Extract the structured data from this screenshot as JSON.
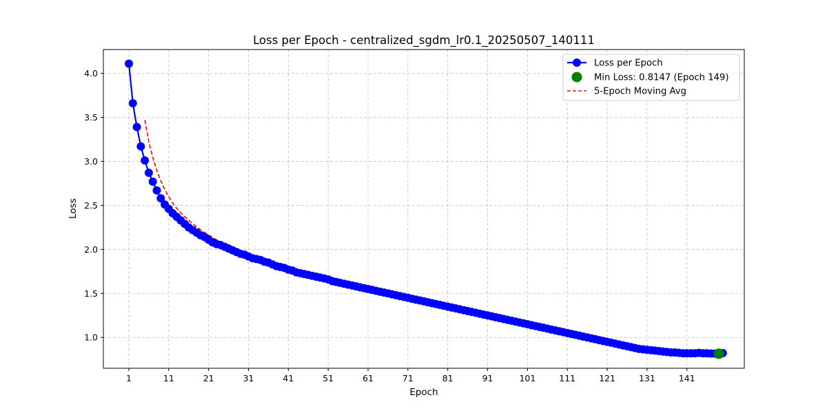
{
  "chart_data": {
    "type": "line",
    "title": "Loss per Epoch - centralized_sgdm_lr0.1_20250507_140111",
    "xlabel": "Epoch",
    "ylabel": "Loss",
    "xlim": [
      -5.4,
      155.4
    ],
    "ylim": [
      0.65,
      4.27
    ],
    "xticks": [
      1,
      11,
      21,
      31,
      41,
      51,
      61,
      71,
      81,
      91,
      101,
      111,
      121,
      131,
      141
    ],
    "yticks": [
      1.0,
      1.5,
      2.0,
      2.5,
      3.0,
      3.5,
      4.0
    ],
    "ytick_labels": [
      "1.0",
      "1.5",
      "2.0",
      "2.5",
      "3.0",
      "3.5",
      "4.0"
    ],
    "grid": true,
    "legend_position": "top-right",
    "colors": {
      "loss": "#0000ff",
      "min_marker": "#008000",
      "moving_avg": "#ff0000",
      "grid": "#b0b0b0"
    },
    "series": [
      {
        "name": "Loss per Epoch",
        "style": "line-with-markers",
        "epoch_start": 1,
        "values": [
          4.11,
          3.66,
          3.39,
          3.17,
          3.01,
          2.87,
          2.77,
          2.67,
          2.58,
          2.51,
          2.46,
          2.41,
          2.37,
          2.33,
          2.29,
          2.25,
          2.22,
          2.19,
          2.16,
          2.14,
          2.11,
          2.08,
          2.06,
          2.05,
          2.03,
          2.01,
          1.99,
          1.97,
          1.95,
          1.94,
          1.92,
          1.9,
          1.89,
          1.88,
          1.86,
          1.85,
          1.83,
          1.81,
          1.8,
          1.79,
          1.77,
          1.76,
          1.74,
          1.73,
          1.72,
          1.71,
          1.7,
          1.69,
          1.68,
          1.67,
          1.66,
          1.64,
          1.63,
          1.62,
          1.61,
          1.6,
          1.59,
          1.58,
          1.57,
          1.56,
          1.55,
          1.54,
          1.53,
          1.52,
          1.51,
          1.5,
          1.49,
          1.48,
          1.47,
          1.46,
          1.45,
          1.44,
          1.43,
          1.42,
          1.41,
          1.4,
          1.39,
          1.38,
          1.37,
          1.36,
          1.35,
          1.34,
          1.33,
          1.32,
          1.31,
          1.3,
          1.29,
          1.28,
          1.27,
          1.26,
          1.25,
          1.24,
          1.23,
          1.22,
          1.21,
          1.2,
          1.19,
          1.18,
          1.17,
          1.16,
          1.15,
          1.14,
          1.13,
          1.12,
          1.11,
          1.1,
          1.09,
          1.08,
          1.07,
          1.06,
          1.05,
          1.04,
          1.03,
          1.02,
          1.01,
          1.0,
          0.99,
          0.98,
          0.97,
          0.96,
          0.95,
          0.94,
          0.93,
          0.92,
          0.91,
          0.9,
          0.89,
          0.88,
          0.87,
          0.865,
          0.86,
          0.855,
          0.85,
          0.845,
          0.84,
          0.835,
          0.83,
          0.83,
          0.825,
          0.82,
          0.82,
          0.82,
          0.82,
          0.825,
          0.82,
          0.82,
          0.818,
          0.816,
          0.8147,
          0.822
        ]
      },
      {
        "name": "5-Epoch Moving Avg",
        "style": "dashed-line",
        "window": 5
      }
    ],
    "min_point": {
      "label": "Min Loss: 0.8147 (Epoch 149)",
      "epoch": 149,
      "value": 0.8147
    },
    "legend": [
      "Loss per Epoch",
      "Min Loss: 0.8147 (Epoch 149)",
      "5-Epoch Moving Avg"
    ]
  }
}
